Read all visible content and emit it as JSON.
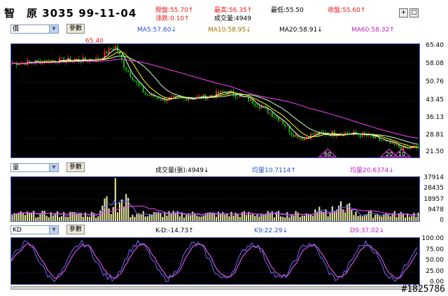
{
  "header": {
    "title": "智　原 3035 99-11-04",
    "open": "開盤:55.70↑",
    "high": "最高:56.35↑",
    "low": "最低:55.50",
    "close": "收盤:55.60↑",
    "change": "漲跌:0.10↑",
    "volume": "成交量:4949"
  },
  "window_buttons": {
    "add": "+",
    "restore": "□"
  },
  "price_panel": {
    "select": "價",
    "param_button": "參數",
    "ma5": "MA5:57.60↓",
    "ma10": "MA10:58.95↓",
    "ma20": "MA20:58.91↓",
    "ma60": "MA60:58.32↑",
    "peak_label": "65.40",
    "axis": [
      "65.40",
      "58.08",
      "50.76",
      "43.45",
      "36.13",
      "28.81",
      "21.50"
    ],
    "markers": [
      "60",
      "20",
      "10"
    ]
  },
  "volume_panel": {
    "select": "量",
    "param_button": "參數",
    "volume": "成交量(張):4949↓",
    "avg1": "均量10.7114↑",
    "avg2": "均量20.6374↓",
    "axis": [
      "37914",
      "28435",
      "18957",
      "9478",
      "0"
    ]
  },
  "kd_panel": {
    "select": "KD",
    "param_button": "參數",
    "kd_diff": "K-D:-14.73↑",
    "k9": "K9:22.29↓",
    "d9": "D9:37.02↓",
    "axis": [
      "100.00",
      "75.00",
      "50.00",
      "25.00",
      "0.00"
    ]
  },
  "watermark": "#1825786",
  "colors": {
    "ma5": "#ffffff",
    "ma10": "#ffff00",
    "ma20": "#c8ffc8",
    "ma60": "#ff40ff",
    "up": "#ff3030",
    "down": "#00c000",
    "k": "#6a6aff",
    "d": "#ff60ff",
    "grid": "#3a3aa0"
  }
}
